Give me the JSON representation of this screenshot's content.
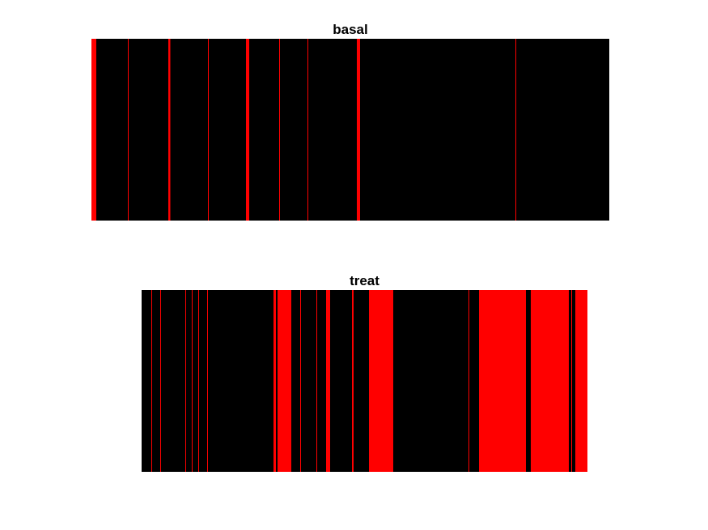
{
  "chart_data": [
    {
      "type": "event_raster",
      "title": "basal",
      "background_color": "#000000",
      "event_color": "#ff0000",
      "x_range": [
        0,
        640
      ],
      "events": [
        {
          "start": 0,
          "width": 6
        },
        {
          "start": 45,
          "width": 1
        },
        {
          "start": 95,
          "width": 2.5
        },
        {
          "start": 144,
          "width": 1
        },
        {
          "start": 191,
          "width": 4
        },
        {
          "start": 232,
          "width": 1
        },
        {
          "start": 267,
          "width": 1
        },
        {
          "start": 328,
          "width": 4
        },
        {
          "start": 524,
          "width": 1
        }
      ]
    },
    {
      "type": "event_raster",
      "title": "treat",
      "background_color": "#000000",
      "event_color": "#ff0000",
      "x_range": [
        0,
        551
      ],
      "events": [
        {
          "start": 12,
          "width": 1
        },
        {
          "start": 23,
          "width": 1
        },
        {
          "start": 54,
          "width": 1
        },
        {
          "start": 62,
          "width": 1
        },
        {
          "start": 70,
          "width": 1
        },
        {
          "start": 81,
          "width": 1
        },
        {
          "start": 163,
          "width": 3
        },
        {
          "start": 168,
          "width": 17
        },
        {
          "start": 196,
          "width": 1
        },
        {
          "start": 216,
          "width": 1
        },
        {
          "start": 228,
          "width": 5
        },
        {
          "start": 260,
          "width": 2
        },
        {
          "start": 281,
          "width": 30
        },
        {
          "start": 404,
          "width": 1
        },
        {
          "start": 417,
          "width": 58
        },
        {
          "start": 481,
          "width": 47
        },
        {
          "start": 531,
          "width": 1
        },
        {
          "start": 536,
          "width": 15
        }
      ]
    }
  ]
}
